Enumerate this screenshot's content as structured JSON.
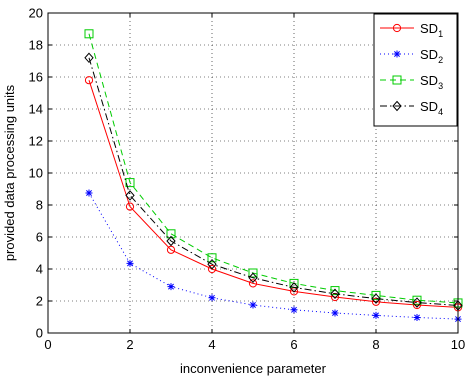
{
  "chart_data": {
    "type": "line",
    "xlabel": "inconvenience parameter",
    "ylabel": "provided data processing units",
    "xlim": [
      0,
      10
    ],
    "ylim": [
      0,
      20
    ],
    "xticks": [
      "0",
      "2",
      "4",
      "6",
      "8",
      "10"
    ],
    "yticks": [
      "0",
      "2",
      "4",
      "6",
      "8",
      "10",
      "12",
      "14",
      "16",
      "18",
      "20"
    ],
    "grid": true,
    "legend_position": "top-right",
    "x": [
      1,
      2,
      3,
      4,
      5,
      6,
      7,
      8,
      9,
      10
    ],
    "series": [
      {
        "name": "SD1",
        "name_base": "SD",
        "name_sub": "1",
        "color": "#ff0000",
        "line": "solid",
        "marker": "circle",
        "values": [
          15.8,
          7.9,
          5.2,
          4.0,
          3.1,
          2.6,
          2.25,
          1.95,
          1.75,
          1.6
        ]
      },
      {
        "name": "SD2",
        "name_base": "SD",
        "name_sub": "2",
        "color": "#0000ff",
        "line": "dotted",
        "marker": "asterisk",
        "values": [
          8.75,
          4.35,
          2.9,
          2.2,
          1.75,
          1.45,
          1.25,
          1.1,
          0.97,
          0.87
        ]
      },
      {
        "name": "SD3",
        "name_base": "SD",
        "name_sub": "3",
        "color": "#00cc00",
        "line": "dashed",
        "marker": "square",
        "values": [
          18.7,
          9.4,
          6.2,
          4.7,
          3.75,
          3.1,
          2.65,
          2.35,
          2.05,
          1.88
        ]
      },
      {
        "name": "SD4",
        "name_base": "SD",
        "name_sub": "4",
        "color": "#000000",
        "line": "dashdot",
        "marker": "diamond",
        "values": [
          17.2,
          8.6,
          5.75,
          4.3,
          3.45,
          2.85,
          2.45,
          2.15,
          1.9,
          1.72
        ]
      }
    ]
  }
}
